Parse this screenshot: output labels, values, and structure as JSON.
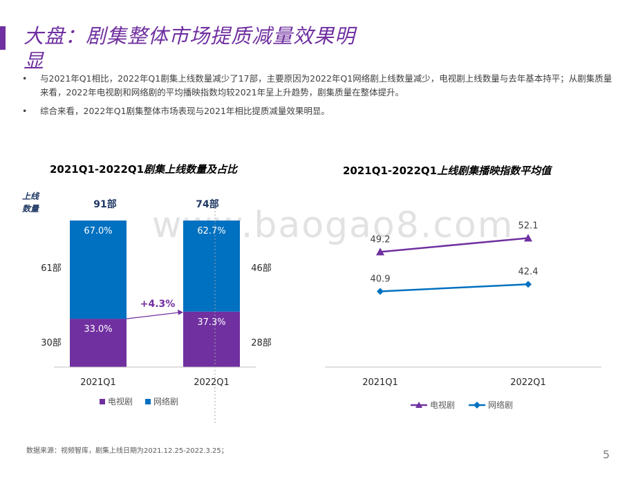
{
  "title": "大盘：剧集整体市场提质减量效果明显",
  "bullets": [
    "与2021年Q1相比，2022年Q1剧集上线数量减少了17部，主要原因为2022年Q1网络剧上线数量减少，电视剧上线数量与去年基本持平；从剧集质量来看，2022年电视剧和网络剧的平均播映指数均较2021年呈上升趋势，剧集质量在整体提升。",
    "综合来看，2022年Q1剧集整体市场表现与2021年相比提质减量效果明显。"
  ],
  "bullet_symbol": "•",
  "watermark": "www.baogao8.com",
  "footer": "数据来源：视频智库，剧集上线日期为2021.12.25-2022.3.25；",
  "page_number": "5",
  "colors": {
    "purple": "#7030a0",
    "blue": "#0070c0",
    "grid": "#d9d9d9"
  },
  "chart_data": [
    {
      "type": "bar",
      "stacked": true,
      "title_prefix": "2021Q1-2022Q1",
      "title_suffix": "剧集上线数量及占比",
      "ylabel_line1": "上线",
      "ylabel_line2": "数量",
      "categories": [
        "2021Q1",
        "2022Q1"
      ],
      "totals": [
        "91部",
        "74部"
      ],
      "series": [
        {
          "name": "电视剧",
          "values": [
            30,
            28
          ],
          "value_labels": [
            "30部",
            "28部"
          ],
          "shares": [
            "33.0%",
            "37.3%"
          ]
        },
        {
          "name": "网络剧",
          "values": [
            61,
            46
          ],
          "value_labels": [
            "61部",
            "46部"
          ],
          "shares": [
            "67.0%",
            "62.7%"
          ]
        }
      ],
      "annotation": "+4.3%"
    },
    {
      "type": "line",
      "title_prefix": "2021Q1-2022Q1",
      "title_suffix": "上线剧集播映指数平均值",
      "categories": [
        "2021Q1",
        "2022Q1"
      ],
      "ylim": [
        25,
        60
      ],
      "series": [
        {
          "name": "电视剧",
          "values": [
            49.2,
            52.1
          ],
          "labels": [
            "49.2",
            "52.1"
          ],
          "marker": "triangle"
        },
        {
          "name": "网络剧",
          "values": [
            40.9,
            42.4
          ],
          "labels": [
            "40.9",
            "42.4"
          ],
          "marker": "diamond"
        }
      ]
    }
  ]
}
